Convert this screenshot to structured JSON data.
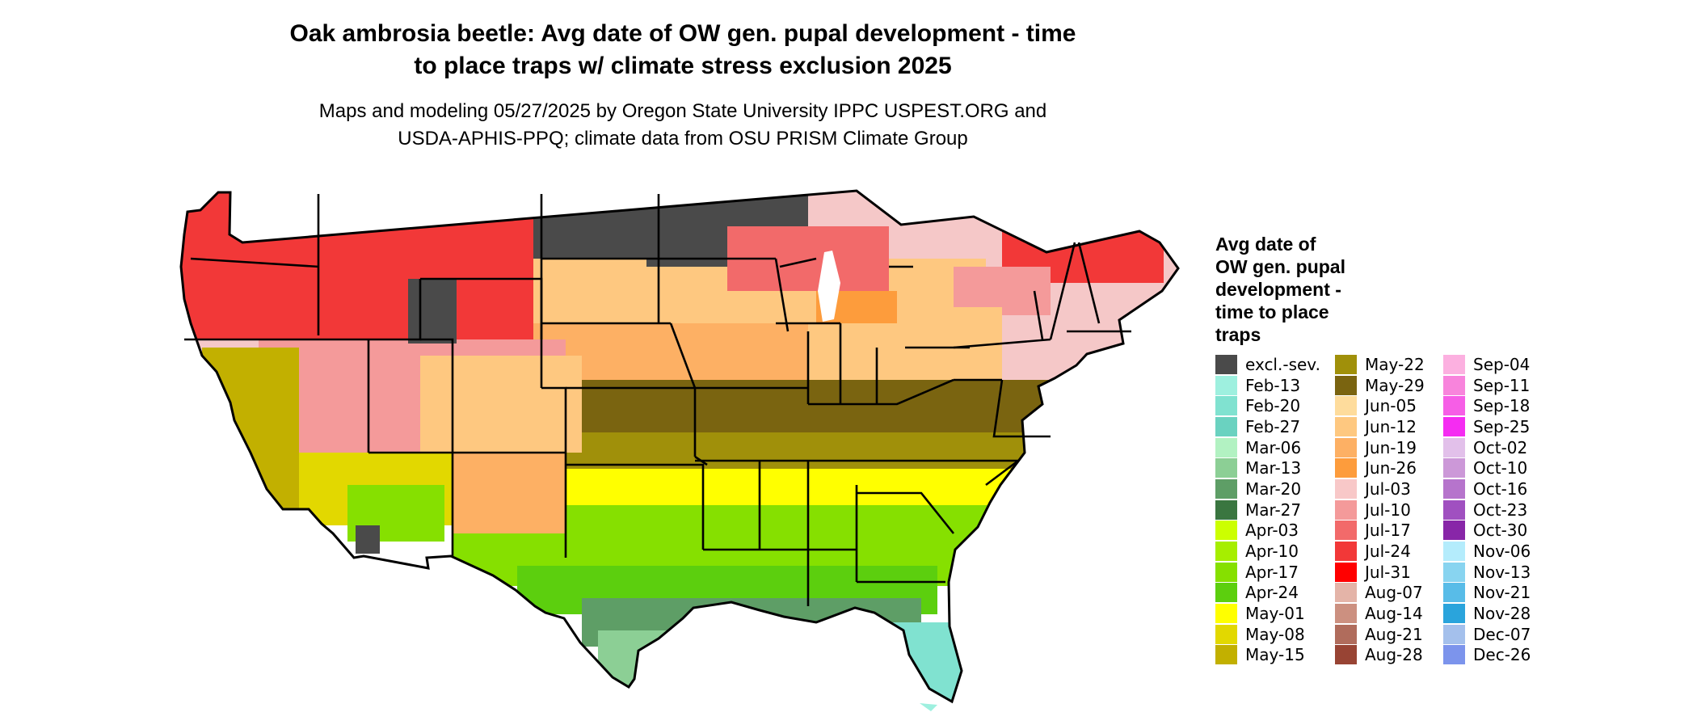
{
  "title_line1": "Oak ambrosia beetle: Avg date of OW gen. pupal development - time",
  "title_line2": "to place traps w/ climate stress exclusion 2025",
  "subtitle_line1": "Maps and modeling 05/27/2025 by Oregon State University IPPC USPEST.ORG and",
  "subtitle_line2": "USDA-APHIS-PPQ; climate data from OSU PRISM Climate Group",
  "legend": {
    "title": "Avg date of OW gen. pupal development - time to place traps",
    "title_lines": [
      "Avg date of",
      "OW gen. pupal",
      "development -",
      "time to place",
      "traps"
    ],
    "columns": [
      [
        {
          "label": "excl.-sev.",
          "color": "#4a4a4a"
        },
        {
          "label": "Feb-13",
          "color": "#9ef0df"
        },
        {
          "label": "Feb-20",
          "color": "#80e2d0"
        },
        {
          "label": "Feb-27",
          "color": "#6ad2c0"
        },
        {
          "label": "Mar-06",
          "color": "#b2f2c2"
        },
        {
          "label": "Mar-13",
          "color": "#8ccf95"
        },
        {
          "label": "Mar-20",
          "color": "#5e9e66"
        },
        {
          "label": "Mar-27",
          "color": "#3a7640"
        },
        {
          "label": "Apr-03",
          "color": "#ccff00"
        },
        {
          "label": "Apr-10",
          "color": "#a6ee00"
        },
        {
          "label": "Apr-17",
          "color": "#86e000"
        },
        {
          "label": "Apr-24",
          "color": "#5ccf0e"
        },
        {
          "label": "May-01",
          "color": "#ffff00"
        },
        {
          "label": "May-08",
          "color": "#e2d800"
        },
        {
          "label": "May-15",
          "color": "#c2b000"
        }
      ],
      [
        {
          "label": "May-22",
          "color": "#a0900a"
        },
        {
          "label": "May-29",
          "color": "#7a6410"
        },
        {
          "label": "Jun-05",
          "color": "#fedc9c"
        },
        {
          "label": "Jun-12",
          "color": "#fec880"
        },
        {
          "label": "Jun-19",
          "color": "#fdb064"
        },
        {
          "label": "Jun-26",
          "color": "#fd9c3c"
        },
        {
          "label": "Jul-03",
          "color": "#f8c8c8"
        },
        {
          "label": "Jul-10",
          "color": "#f49a9a"
        },
        {
          "label": "Jul-17",
          "color": "#f26a6a"
        },
        {
          "label": "Jul-24",
          "color": "#f23838"
        },
        {
          "label": "Jul-31",
          "color": "#ff0000"
        },
        {
          "label": "Aug-07",
          "color": "#e4b4a8"
        },
        {
          "label": "Aug-14",
          "color": "#cc9080"
        },
        {
          "label": "Aug-21",
          "color": "#b06c5c"
        },
        {
          "label": "Aug-28",
          "color": "#984434"
        }
      ],
      [
        {
          "label": "Sep-04",
          "color": "#fcb0e0"
        },
        {
          "label": "Sep-11",
          "color": "#f884dc"
        },
        {
          "label": "Sep-18",
          "color": "#f65ee6"
        },
        {
          "label": "Sep-25",
          "color": "#f52cf2"
        },
        {
          "label": "Oct-02",
          "color": "#e2c0ea"
        },
        {
          "label": "Oct-10",
          "color": "#cc98d8"
        },
        {
          "label": "Oct-16",
          "color": "#b674cc"
        },
        {
          "label": "Oct-23",
          "color": "#a050c0"
        },
        {
          "label": "Oct-30",
          "color": "#8826a8"
        },
        {
          "label": "Nov-06",
          "color": "#b4ecfc"
        },
        {
          "label": "Nov-13",
          "color": "#88d4f0"
        },
        {
          "label": "Nov-21",
          "color": "#58bce8"
        },
        {
          "label": "Nov-28",
          "color": "#2aa4dc"
        },
        {
          "label": "Dec-07",
          "color": "#a4c0ec"
        },
        {
          "label": "Dec-26",
          "color": "#7c94ec"
        }
      ]
    ]
  }
}
